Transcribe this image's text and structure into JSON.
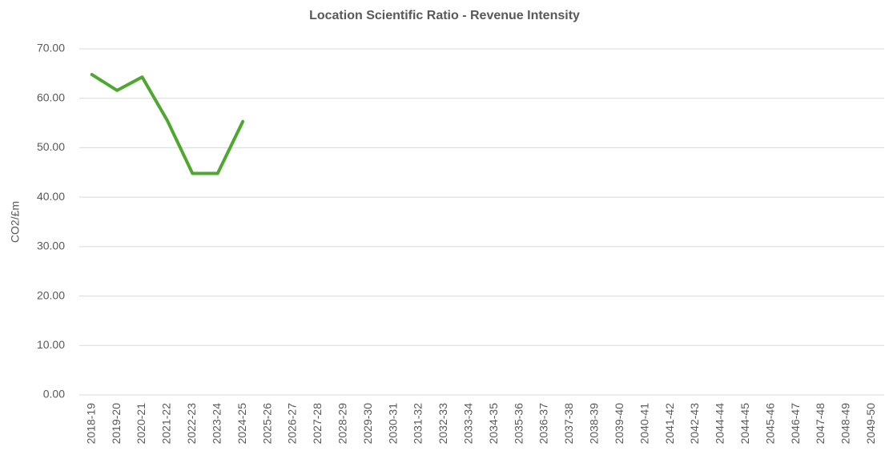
{
  "chart_data": {
    "type": "line",
    "title": "Location Scientific Ratio - Revenue Intensity",
    "y_label": "CO2/£m",
    "categories": [
      "2018-19",
      "2019-20",
      "2020-21",
      "2021-22",
      "2022-23",
      "2023-24",
      "2024-25",
      "2025-26",
      "2026-27",
      "2027-28",
      "2028-29",
      "2029-30",
      "2030-31",
      "2031-32",
      "2032-33",
      "2033-34",
      "2034-35",
      "2035-36",
      "2036-37",
      "2037-38",
      "2038-39",
      "2039-40",
      "2040-41",
      "2041-42",
      "2042-43",
      "2044-44",
      "2044-45",
      "2045-46",
      "2046-47",
      "2047-48",
      "2048-49",
      "2049-50"
    ],
    "values": [
      64.8,
      61.6,
      64.3,
      55.5,
      44.8,
      44.8,
      55.3,
      null,
      null,
      null,
      null,
      null,
      null,
      null,
      null,
      null,
      null,
      null,
      null,
      null,
      null,
      null,
      null,
      null,
      null,
      null,
      null,
      null,
      null,
      null,
      null,
      null
    ],
    "color": "#4ea72e",
    "ylim": [
      0,
      70
    ],
    "yticks": [
      {
        "value": 0,
        "label": "0.00"
      },
      {
        "value": 10,
        "label": "10.00"
      },
      {
        "value": 20,
        "label": "20.00"
      },
      {
        "value": 30,
        "label": "30.00"
      },
      {
        "value": 40,
        "label": "40.00"
      },
      {
        "value": 50,
        "label": "50.00"
      },
      {
        "value": 60,
        "label": "60.00"
      },
      {
        "value": 70,
        "label": "70.00"
      }
    ],
    "grid": true
  }
}
